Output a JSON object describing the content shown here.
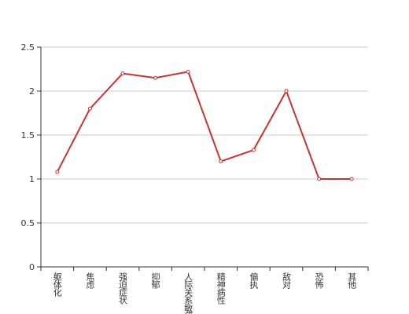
{
  "chart_data": {
    "type": "line",
    "categories": [
      "躯体化",
      "焦虑",
      "强迫症状",
      "抑郁",
      "人际关系敏感",
      "精神病性",
      "偏执",
      "敌对",
      "恐怖",
      "其他"
    ],
    "values": [
      1.08,
      1.8,
      2.2,
      2.15,
      2.22,
      1.2,
      1.33,
      2.0,
      1.0,
      1.0
    ],
    "color": "#c23531",
    "ylim": [
      0,
      2.5
    ],
    "yticks": [
      0,
      0.5,
      1,
      1.5,
      2,
      2.5
    ],
    "grid": true
  }
}
